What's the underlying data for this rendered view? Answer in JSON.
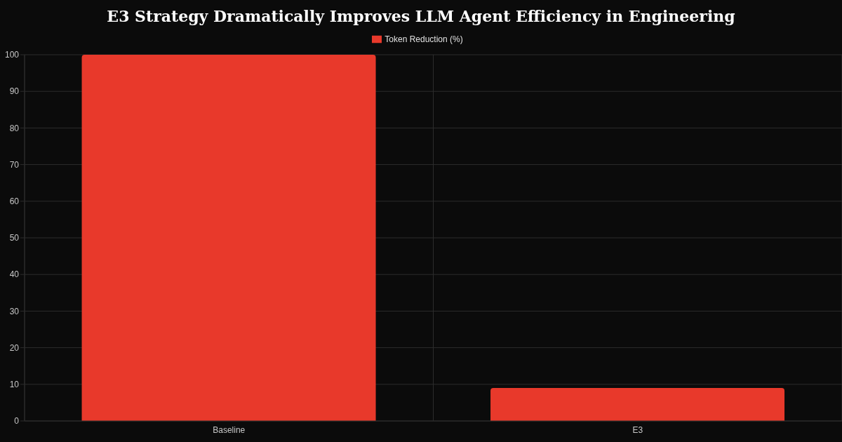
{
  "chart_data": {
    "type": "bar",
    "title": "E3 Strategy Dramatically Improves LLM Agent Efficiency in Engineering",
    "categories": [
      "Baseline",
      "E3"
    ],
    "series": [
      {
        "name": "Token Reduction (%)",
        "color": "#e8392b",
        "values": [
          100,
          9
        ]
      }
    ],
    "ylim": [
      0,
      100
    ],
    "yticks": [
      0,
      10,
      20,
      30,
      40,
      50,
      60,
      70,
      80,
      90,
      100
    ],
    "grid": true,
    "legend": "top"
  }
}
